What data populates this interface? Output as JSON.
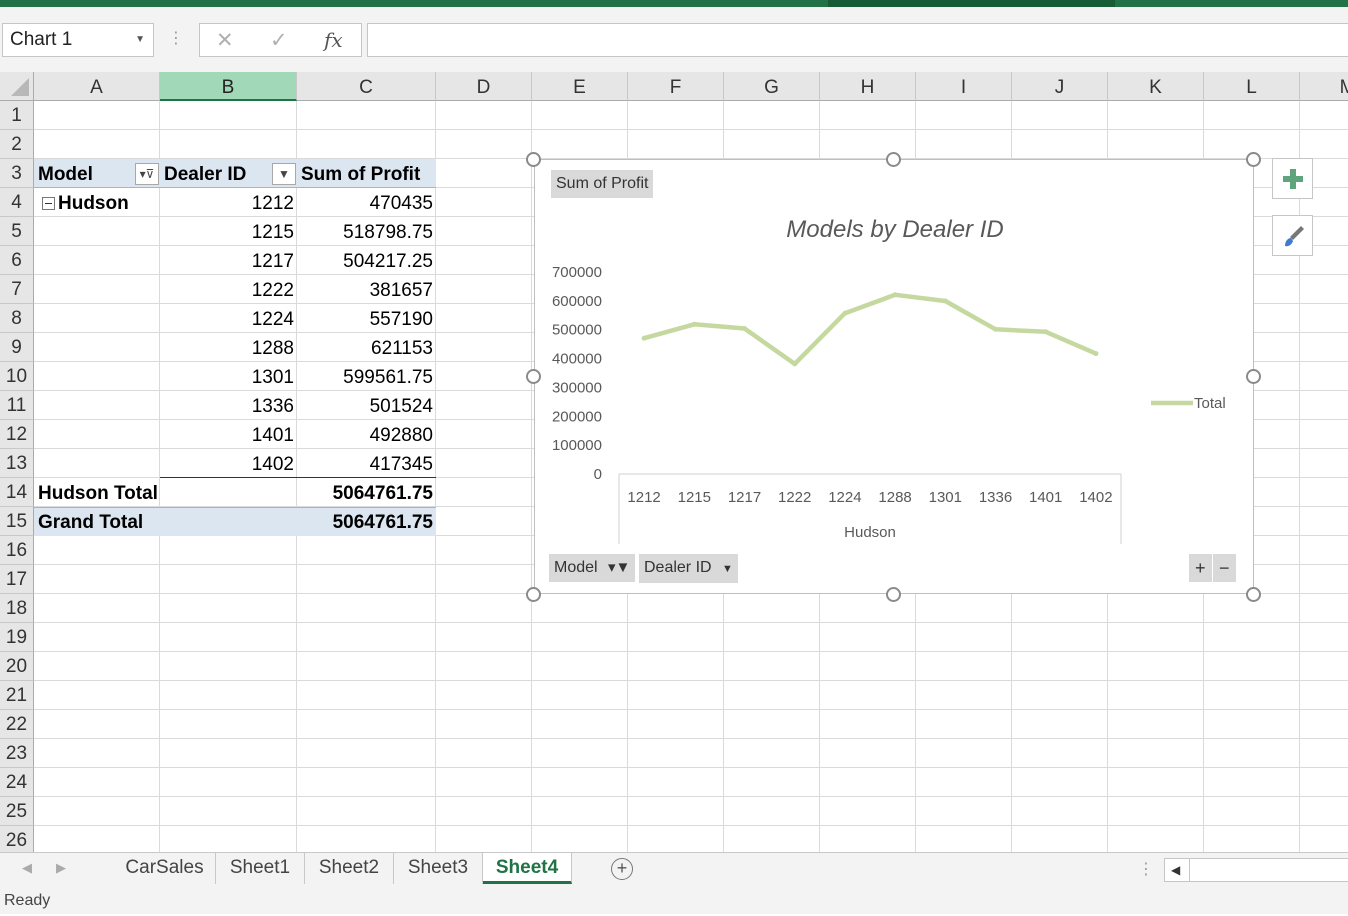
{
  "formula_bar": {
    "name_box": "Chart 1",
    "cancel_glyph": "✕",
    "enter_glyph": "✓",
    "fx_label": "fx",
    "formula": ""
  },
  "columns": [
    "A",
    "B",
    "C",
    "D",
    "E",
    "F",
    "G",
    "H",
    "I",
    "J",
    "K",
    "L",
    "M"
  ],
  "rows": [
    "1",
    "2",
    "3",
    "4",
    "5",
    "6",
    "7",
    "8",
    "9",
    "10",
    "11",
    "12",
    "13",
    "14",
    "15",
    "16",
    "17",
    "18",
    "19",
    "20",
    "21",
    "22",
    "23",
    "24",
    "25",
    "26"
  ],
  "pivot": {
    "headers": {
      "model": "Model",
      "dealer_id": "Dealer ID",
      "sum_profit": "Sum of Profit"
    },
    "group_label": "Hudson",
    "rows": [
      {
        "dealer": "1212",
        "profit": "470435"
      },
      {
        "dealer": "1215",
        "profit": "518798.75"
      },
      {
        "dealer": "1217",
        "profit": "504217.25"
      },
      {
        "dealer": "1222",
        "profit": "381657"
      },
      {
        "dealer": "1224",
        "profit": "557190"
      },
      {
        "dealer": "1288",
        "profit": "621153"
      },
      {
        "dealer": "1301",
        "profit": "599561.75"
      },
      {
        "dealer": "1336",
        "profit": "501524"
      },
      {
        "dealer": "1401",
        "profit": "492880"
      },
      {
        "dealer": "1402",
        "profit": "417345"
      }
    ],
    "subtotal_label": "Hudson Total",
    "subtotal_value": "5064761.75",
    "grand_label": "Grand Total",
    "grand_value": "5064761.75"
  },
  "chart": {
    "value_button": "Sum of Profit",
    "model_button": "Model",
    "dealer_button": "Dealer ID",
    "zoom_in": "+",
    "zoom_out": "−"
  },
  "chart_data": {
    "type": "line",
    "title": "Models by Dealer ID",
    "xlabel": "Hudson",
    "ylabel": "",
    "categories": [
      "1212",
      "1215",
      "1217",
      "1222",
      "1224",
      "1288",
      "1301",
      "1336",
      "1401",
      "1402"
    ],
    "series": [
      {
        "name": "Total",
        "values": [
          470435,
          518798.75,
          504217.25,
          381657,
          557190,
          621153,
          599561.75,
          501524,
          492880,
          417345
        ],
        "color": "#c5d89f"
      }
    ],
    "ylim": [
      0,
      700000
    ],
    "yticks": [
      "0",
      "100000",
      "200000",
      "300000",
      "400000",
      "500000",
      "600000",
      "700000"
    ],
    "grid": false,
    "legend": "right"
  },
  "sheets": {
    "tabs": [
      "CarSales",
      "Sheet1",
      "Sheet2",
      "Sheet3",
      "Sheet4"
    ],
    "active": "Sheet4",
    "add_glyph": "+"
  },
  "status": {
    "text": "Ready"
  }
}
